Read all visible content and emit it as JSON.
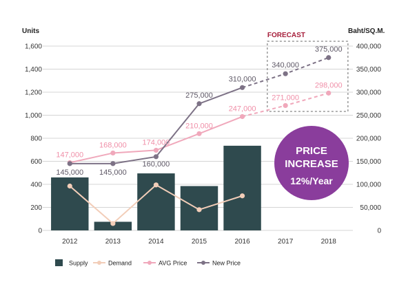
{
  "chart_data": {
    "type": "bar",
    "categories": [
      "2012",
      "2013",
      "2014",
      "2015",
      "2016",
      "2017",
      "2018"
    ],
    "left_axis": {
      "label": "Units",
      "range": [
        0,
        1600
      ],
      "ticks": [
        "0",
        "200",
        "400",
        "600",
        "800",
        "1,000",
        "1,200",
        "1,400",
        "1,600"
      ]
    },
    "right_axis": {
      "label": "Baht/SQ.M.",
      "range": [
        0,
        400000
      ],
      "ticks": [
        "0",
        "50,000",
        "100,000",
        "150,000",
        "200,000",
        "250,000",
        "300,000",
        "350,000",
        "400,000"
      ]
    },
    "grid": true,
    "legend_position": "bottom",
    "series": [
      {
        "name": "Supply",
        "kind": "bar",
        "axis": "left",
        "color": "#2f4a4e",
        "values": [
          460,
          75,
          495,
          385,
          735,
          null,
          null
        ]
      },
      {
        "name": "Demand",
        "kind": "line",
        "axis": "left",
        "color": "#f2cdb8",
        "values": [
          385,
          60,
          395,
          180,
          300,
          null,
          null
        ]
      },
      {
        "name": "AVG Price",
        "kind": "line",
        "axis": "right",
        "color": "#f0a8bb",
        "values": [
          147000,
          168000,
          174000,
          210000,
          247000,
          271000,
          298000
        ],
        "labels": [
          "147,000",
          "168,000",
          "174,000",
          "210,000",
          "247,000",
          "271,000",
          "298,000"
        ],
        "forecast_from": 4
      },
      {
        "name": "New Price",
        "kind": "line",
        "axis": "right",
        "color": "#7d7286",
        "values": [
          145000,
          145000,
          160000,
          275000,
          310000,
          340000,
          375000
        ],
        "labels": [
          "145,000",
          "145,000",
          "160,000",
          "275,000",
          "310,000",
          "340,000",
          "375,000"
        ],
        "forecast_from": 4
      }
    ],
    "forecast": {
      "label": "FORECAST",
      "from_index": 5,
      "to_index": 6
    }
  },
  "badge": {
    "line1": "PRICE",
    "line2": "INCREASE",
    "line3": "12%/Year",
    "color": "#8a3d9c"
  }
}
